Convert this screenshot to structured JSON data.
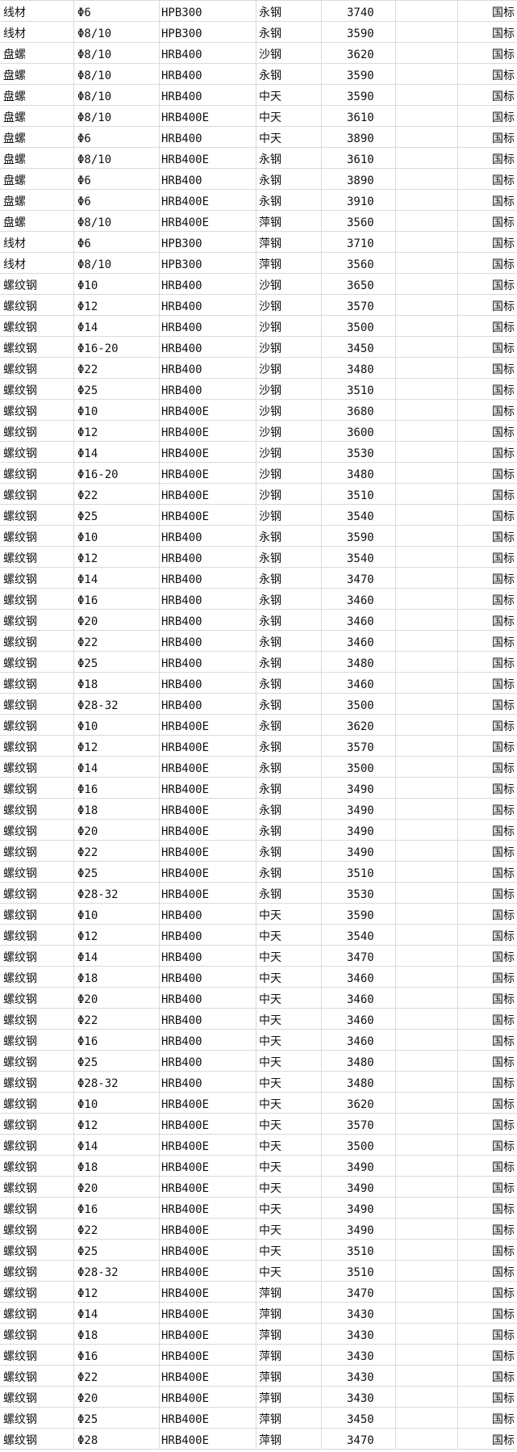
{
  "rows": [
    [
      "线材",
      "Φ6",
      "HPB300",
      "永钢",
      "3740",
      "",
      "国标"
    ],
    [
      "线材",
      "Φ8/10",
      "HPB300",
      "永钢",
      "3590",
      "",
      "国标"
    ],
    [
      "盘螺",
      "Φ8/10",
      "HRB400",
      "沙钢",
      "3620",
      "",
      "国标"
    ],
    [
      "盘螺",
      "Φ8/10",
      "HRB400",
      "永钢",
      "3590",
      "",
      "国标"
    ],
    [
      "盘螺",
      "Φ8/10",
      "HRB400",
      "中天",
      "3590",
      "",
      "国标"
    ],
    [
      "盘螺",
      "Φ8/10",
      "HRB400E",
      "中天",
      "3610",
      "",
      "国标"
    ],
    [
      "盘螺",
      "Φ6",
      "HRB400",
      "中天",
      "3890",
      "",
      "国标"
    ],
    [
      "盘螺",
      "Φ8/10",
      "HRB400E",
      "永钢",
      "3610",
      "",
      "国标"
    ],
    [
      "盘螺",
      "Φ6",
      "HRB400",
      "永钢",
      "3890",
      "",
      "国标"
    ],
    [
      "盘螺",
      "Φ6",
      "HRB400E",
      "永钢",
      "3910",
      "",
      "国标"
    ],
    [
      "盘螺",
      "Φ8/10",
      "HRB400E",
      "萍钢",
      "3560",
      "",
      "国标"
    ],
    [
      "线材",
      "Φ6",
      "HPB300",
      "萍钢",
      "3710",
      "",
      "国标"
    ],
    [
      "线材",
      "Φ8/10",
      "HPB300",
      "萍钢",
      "3560",
      "",
      "国标"
    ],
    [
      "螺纹钢",
      "Φ10",
      "HRB400",
      "沙钢",
      "3650",
      "",
      "国标"
    ],
    [
      "螺纹钢",
      "Φ12",
      "HRB400",
      "沙钢",
      "3570",
      "",
      "国标"
    ],
    [
      "螺纹钢",
      "Φ14",
      "HRB400",
      "沙钢",
      "3500",
      "",
      "国标"
    ],
    [
      "螺纹钢",
      "Φ16-20",
      "HRB400",
      "沙钢",
      "3450",
      "",
      "国标"
    ],
    [
      "螺纹钢",
      "Φ22",
      "HRB400",
      "沙钢",
      "3480",
      "",
      "国标"
    ],
    [
      "螺纹钢",
      "Φ25",
      "HRB400",
      "沙钢",
      "3510",
      "",
      "国标"
    ],
    [
      "螺纹钢",
      "Φ10",
      "HRB400E",
      "沙钢",
      "3680",
      "",
      "国标"
    ],
    [
      "螺纹钢",
      "Φ12",
      "HRB400E",
      "沙钢",
      "3600",
      "",
      "国标"
    ],
    [
      "螺纹钢",
      "Φ14",
      "HRB400E",
      "沙钢",
      "3530",
      "",
      "国标"
    ],
    [
      "螺纹钢",
      "Φ16-20",
      "HRB400E",
      "沙钢",
      "3480",
      "",
      "国标"
    ],
    [
      "螺纹钢",
      "Φ22",
      "HRB400E",
      "沙钢",
      "3510",
      "",
      "国标"
    ],
    [
      "螺纹钢",
      "Φ25",
      "HRB400E",
      "沙钢",
      "3540",
      "",
      "国标"
    ],
    [
      "螺纹钢",
      "Φ10",
      "HRB400",
      "永钢",
      "3590",
      "",
      "国标"
    ],
    [
      "螺纹钢",
      "Φ12",
      "HRB400",
      "永钢",
      "3540",
      "",
      "国标"
    ],
    [
      "螺纹钢",
      "Φ14",
      "HRB400",
      "永钢",
      "3470",
      "",
      "国标"
    ],
    [
      "螺纹钢",
      "Φ16",
      "HRB400",
      "永钢",
      "3460",
      "",
      "国标"
    ],
    [
      "螺纹钢",
      "Φ20",
      "HRB400",
      "永钢",
      "3460",
      "",
      "国标"
    ],
    [
      "螺纹钢",
      "Φ22",
      "HRB400",
      "永钢",
      "3460",
      "",
      "国标"
    ],
    [
      "螺纹钢",
      "Φ25",
      "HRB400",
      "永钢",
      "3480",
      "",
      "国标"
    ],
    [
      "螺纹钢",
      "Φ18",
      "HRB400",
      "永钢",
      "3460",
      "",
      "国标"
    ],
    [
      "螺纹钢",
      "Φ28-32",
      "HRB400",
      "永钢",
      "3500",
      "",
      "国标"
    ],
    [
      "螺纹钢",
      "Φ10",
      "HRB400E",
      "永钢",
      "3620",
      "",
      "国标"
    ],
    [
      "螺纹钢",
      "Φ12",
      "HRB400E",
      "永钢",
      "3570",
      "",
      "国标"
    ],
    [
      "螺纹钢",
      "Φ14",
      "HRB400E",
      "永钢",
      "3500",
      "",
      "国标"
    ],
    [
      "螺纹钢",
      "Φ16",
      "HRB400E",
      "永钢",
      "3490",
      "",
      "国标"
    ],
    [
      "螺纹钢",
      "Φ18",
      "HRB400E",
      "永钢",
      "3490",
      "",
      "国标"
    ],
    [
      "螺纹钢",
      "Φ20",
      "HRB400E",
      "永钢",
      "3490",
      "",
      "国标"
    ],
    [
      "螺纹钢",
      "Φ22",
      "HRB400E",
      "永钢",
      "3490",
      "",
      "国标"
    ],
    [
      "螺纹钢",
      "Φ25",
      "HRB400E",
      "永钢",
      "3510",
      "",
      "国标"
    ],
    [
      "螺纹钢",
      "Φ28-32",
      "HRB400E",
      "永钢",
      "3530",
      "",
      "国标"
    ],
    [
      "螺纹钢",
      "Φ10",
      "HRB400",
      "中天",
      "3590",
      "",
      "国标"
    ],
    [
      "螺纹钢",
      "Φ12",
      "HRB400",
      "中天",
      "3540",
      "",
      "国标"
    ],
    [
      "螺纹钢",
      "Φ14",
      "HRB400",
      "中天",
      "3470",
      "",
      "国标"
    ],
    [
      "螺纹钢",
      "Φ18",
      "HRB400",
      "中天",
      "3460",
      "",
      "国标"
    ],
    [
      "螺纹钢",
      "Φ20",
      "HRB400",
      "中天",
      "3460",
      "",
      "国标"
    ],
    [
      "螺纹钢",
      "Φ22",
      "HRB400",
      "中天",
      "3460",
      "",
      "国标"
    ],
    [
      "螺纹钢",
      "Φ16",
      "HRB400",
      "中天",
      "3460",
      "",
      "国标"
    ],
    [
      "螺纹钢",
      "Φ25",
      "HRB400",
      "中天",
      "3480",
      "",
      "国标"
    ],
    [
      "螺纹钢",
      "Φ28-32",
      "HRB400",
      "中天",
      "3480",
      "",
      "国标"
    ],
    [
      "螺纹钢",
      "Φ10",
      "HRB400E",
      "中天",
      "3620",
      "",
      "国标"
    ],
    [
      "螺纹钢",
      "Φ12",
      "HRB400E",
      "中天",
      "3570",
      "",
      "国标"
    ],
    [
      "螺纹钢",
      "Φ14",
      "HRB400E",
      "中天",
      "3500",
      "",
      "国标"
    ],
    [
      "螺纹钢",
      "Φ18",
      "HRB400E",
      "中天",
      "3490",
      "",
      "国标"
    ],
    [
      "螺纹钢",
      "Φ20",
      "HRB400E",
      "中天",
      "3490",
      "",
      "国标"
    ],
    [
      "螺纹钢",
      "Φ16",
      "HRB400E",
      "中天",
      "3490",
      "",
      "国标"
    ],
    [
      "螺纹钢",
      "Φ22",
      "HRB400E",
      "中天",
      "3490",
      "",
      "国标"
    ],
    [
      "螺纹钢",
      "Φ25",
      "HRB400E",
      "中天",
      "3510",
      "",
      "国标"
    ],
    [
      "螺纹钢",
      "Φ28-32",
      "HRB400E",
      "中天",
      "3510",
      "",
      "国标"
    ],
    [
      "螺纹钢",
      "Φ12",
      "HRB400E",
      "萍钢",
      "3470",
      "",
      "国标"
    ],
    [
      "螺纹钢",
      "Φ14",
      "HRB400E",
      "萍钢",
      "3430",
      "",
      "国标"
    ],
    [
      "螺纹钢",
      "Φ18",
      "HRB400E",
      "萍钢",
      "3430",
      "",
      "国标"
    ],
    [
      "螺纹钢",
      "Φ16",
      "HRB400E",
      "萍钢",
      "3430",
      "",
      "国标"
    ],
    [
      "螺纹钢",
      "Φ22",
      "HRB400E",
      "萍钢",
      "3430",
      "",
      "国标"
    ],
    [
      "螺纹钢",
      "Φ20",
      "HRB400E",
      "萍钢",
      "3430",
      "",
      "国标"
    ],
    [
      "螺纹钢",
      "Φ25",
      "HRB400E",
      "萍钢",
      "3450",
      "",
      "国标"
    ],
    [
      "螺纹钢",
      "Φ28",
      "HRB400E",
      "萍钢",
      "3470",
      "",
      "国标"
    ]
  ]
}
